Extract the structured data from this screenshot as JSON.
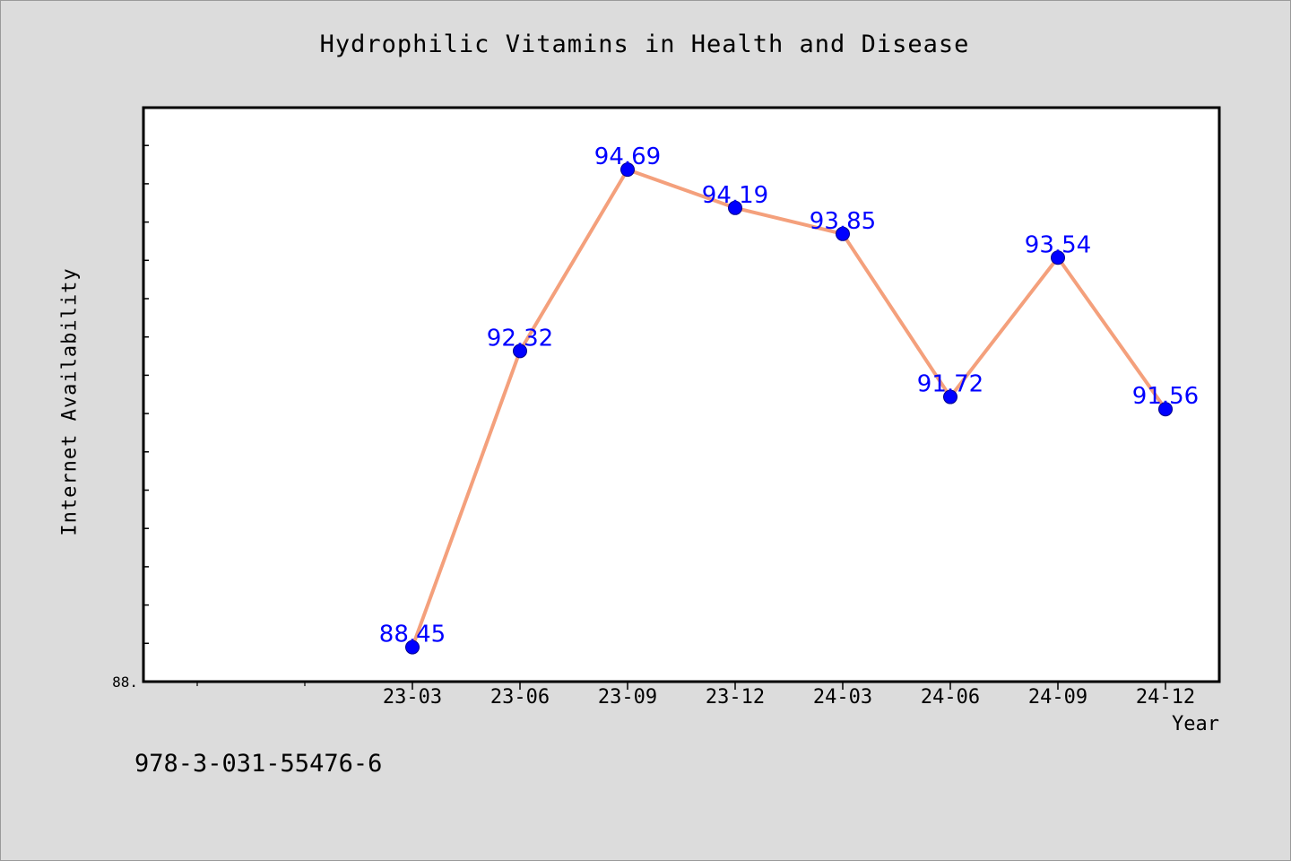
{
  "chart_data": {
    "type": "line",
    "title": "Hydrophilic Vitamins in Health and Disease",
    "xlabel": "Year",
    "ylabel": "Internet Availability",
    "categories": [
      "23-03",
      "23-06",
      "23-09",
      "23-12",
      "24-03",
      "24-06",
      "24-09",
      "24-12"
    ],
    "series": [
      {
        "values": [
          88.45,
          92.32,
          94.69,
          94.19,
          93.85,
          91.72,
          93.54,
          91.56
        ],
        "data_labels": [
          "88.45",
          "92.32",
          "94.69",
          "94.19",
          "93.85",
          "91.72",
          "93.54",
          "91.56"
        ],
        "line_color": "#f4a07c",
        "marker_color": "#0000ff",
        "label_color": "#0000ff"
      }
    ],
    "ylim": [
      88.0,
      95.5
    ],
    "y_tick_labels": [
      "88."
    ],
    "y_tick_values": [
      88.0
    ],
    "grid": false,
    "legend": "none"
  },
  "footnote": "978-3-031-55476-6",
  "colors": {
    "background": "#dcdcdc",
    "plot_area": "#ffffff",
    "axis": "#000000"
  }
}
